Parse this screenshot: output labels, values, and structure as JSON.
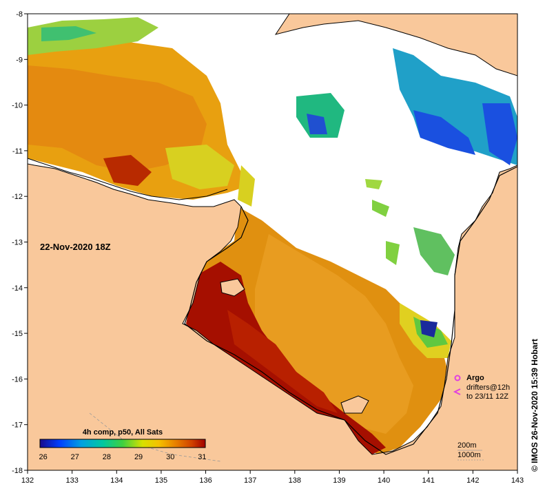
{
  "map": {
    "date_label": "22-Nov-2020 18Z",
    "x_ticks": [
      "132",
      "133",
      "134",
      "135",
      "136",
      "137",
      "138",
      "139",
      "140",
      "141",
      "142",
      "143"
    ],
    "y_ticks": [
      "-8",
      "-9",
      "-10",
      "-11",
      "-12",
      "-13",
      "-14",
      "-15",
      "-16",
      "-17",
      "-18"
    ],
    "extent": {
      "lon": [
        132,
        143
      ],
      "lat": [
        -18,
        -8
      ]
    }
  },
  "colorbar": {
    "title": "4h comp, p50, All Sats",
    "labels": [
      "26",
      "27",
      "28",
      "29",
      "30",
      "31"
    ],
    "range": [
      25.9,
      31.1
    ]
  },
  "legend": {
    "argo_label": "Argo",
    "drifters_line1": "drifters@12h",
    "drifters_line2": "to 23/11 12Z",
    "contour_200": "200m",
    "contour_1000": "1000m",
    "argo_color": "#e040e0",
    "drifter_color": "#e040e0"
  },
  "credit": "© IMOS 26-Nov-2020 15:39 Hobart",
  "colors": {
    "land": "#f9c89b",
    "cloud": "#ffffff",
    "hot": "#a50f00",
    "warm": "#e8a000"
  }
}
